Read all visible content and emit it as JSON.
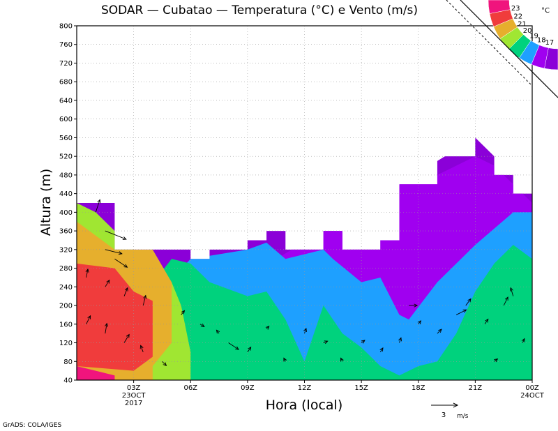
{
  "title": "SODAR  —  Cubatao  —  Temperatura (°C) e Vento (m/s)",
  "credit": "GrADS: COLA/IGES",
  "chart_data": {
    "type": "heatmap",
    "title": "SODAR  —  Cubatao  —  Temperatura (°C) e Vento (m/s)",
    "xlabel": "Hora (local)",
    "ylabel": "Altura (m)",
    "ylim": [
      40,
      800
    ],
    "xlim": [
      0,
      24
    ],
    "grid": true,
    "yticks": [
      40,
      80,
      120,
      160,
      200,
      240,
      280,
      320,
      360,
      400,
      440,
      480,
      520,
      560,
      600,
      640,
      680,
      720,
      760,
      800
    ],
    "xticks": [
      {
        "x": 3,
        "label": "03Z",
        "sub1": "23OCT",
        "sub2": "2017"
      },
      {
        "x": 6,
        "label": "06Z",
        "sub1": "",
        "sub2": ""
      },
      {
        "x": 9,
        "label": "09Z",
        "sub1": "",
        "sub2": ""
      },
      {
        "x": 12,
        "label": "12Z",
        "sub1": "",
        "sub2": ""
      },
      {
        "x": 15,
        "label": "15Z",
        "sub1": "",
        "sub2": ""
      },
      {
        "x": 18,
        "label": "18Z",
        "sub1": "",
        "sub2": ""
      },
      {
        "x": 21,
        "label": "21Z",
        "sub1": "",
        "sub2": ""
      },
      {
        "x": 24,
        "label": "00Z",
        "sub1": "24OCT",
        "sub2": ""
      }
    ],
    "colorbar": {
      "unit": "°C",
      "levels": [
        "17",
        "18",
        "19",
        "20",
        "21",
        "22",
        "23"
      ],
      "colors": [
        "#8b00d8",
        "#a000f0",
        "#1ea0ff",
        "#00d27d",
        "#a0e632",
        "#e6af2d",
        "#f03c3c",
        "#f0147d"
      ]
    },
    "top_boundary": [
      {
        "x0": 0,
        "x1": 2,
        "top": 420
      },
      {
        "x0": 2,
        "x1": 4,
        "top": 320
      },
      {
        "x0": 4,
        "x1": 6,
        "top": 320
      },
      {
        "x0": 6,
        "x1": 7,
        "top": 300
      },
      {
        "x0": 7,
        "x1": 9,
        "top": 320
      },
      {
        "x0": 9,
        "x1": 10,
        "top": 340
      },
      {
        "x0": 10,
        "x1": 11,
        "top": 360
      },
      {
        "x0": 11,
        "x1": 13,
        "top": 320
      },
      {
        "x0": 13,
        "x1": 14,
        "top": 360
      },
      {
        "x0": 14,
        "x1": 16,
        "top": 320
      },
      {
        "x0": 16,
        "x1": 17,
        "top": 340
      },
      {
        "x0": 17,
        "x1": 19,
        "top": 460
      },
      {
        "x0": 19,
        "x1": 21,
        "top": 520
      },
      {
        "x0": 21,
        "x1": 22,
        "top": 560
      },
      {
        "x0": 22,
        "x1": 23,
        "top": 480
      },
      {
        "x0": 23,
        "x1": 24,
        "top": 440
      }
    ],
    "bands": [
      {
        "level": "< 17",
        "color": "#8b00d8",
        "upper": [
          [
            0,
            420
          ],
          [
            2,
            420
          ],
          [
            10,
            360
          ],
          [
            17,
            460
          ],
          [
            21,
            560
          ],
          [
            24,
            440
          ]
        ],
        "lower": null
      },
      {
        "level": "17-18",
        "color": "#a000f0",
        "upper": [
          [
            17,
            460
          ],
          [
            19,
            480
          ],
          [
            21,
            520
          ],
          [
            22,
            500
          ],
          [
            24,
            420
          ]
        ],
        "lower": [
          [
            17,
            430
          ],
          [
            19,
            440
          ],
          [
            21,
            480
          ],
          [
            22,
            480
          ],
          [
            24,
            400
          ]
        ]
      },
      {
        "level": "18-19",
        "color": "#1ea0ff",
        "upper": [
          [
            6,
            300
          ],
          [
            9,
            320
          ],
          [
            10,
            335
          ],
          [
            11,
            300
          ],
          [
            13,
            320
          ],
          [
            13.5,
            300
          ],
          [
            15,
            250
          ],
          [
            16,
            260
          ],
          [
            17,
            180
          ],
          [
            17.5,
            170
          ],
          [
            19,
            250
          ],
          [
            21,
            330
          ],
          [
            23,
            400
          ],
          [
            24,
            400
          ]
        ],
        "lower": null
      },
      {
        "level": "19-20",
        "color": "#00d27d",
        "upper": [
          [
            5,
            300
          ],
          [
            6,
            290
          ],
          [
            7,
            250
          ],
          [
            9,
            220
          ],
          [
            10,
            230
          ],
          [
            11,
            170
          ],
          [
            12,
            80
          ],
          [
            13,
            200
          ],
          [
            14,
            140
          ],
          [
            15,
            110
          ],
          [
            16,
            70
          ],
          [
            17,
            50
          ],
          [
            18,
            70
          ],
          [
            19,
            80
          ],
          [
            20,
            140
          ],
          [
            21,
            230
          ],
          [
            22,
            290
          ],
          [
            23,
            330
          ],
          [
            24,
            300
          ]
        ],
        "lower": null
      },
      {
        "level": "20-21",
        "color": "#a0e632",
        "upper": [
          [
            0,
            420
          ],
          [
            1,
            400
          ],
          [
            3,
            320
          ],
          [
            4,
            300
          ],
          [
            5,
            250
          ],
          [
            5.5,
            200
          ],
          [
            6,
            100
          ]
        ],
        "lower": null
      },
      {
        "level": "21-22",
        "color": "#e6af2d",
        "upper": [
          [
            0,
            380
          ],
          [
            2,
            320
          ],
          [
            4,
            320
          ],
          [
            5,
            250
          ],
          [
            5,
            120
          ],
          [
            4,
            70
          ]
        ],
        "lower": null
      },
      {
        "level": "22-23",
        "color": "#f03c3c",
        "upper": [
          [
            0,
            290
          ],
          [
            2,
            280
          ],
          [
            3,
            230
          ],
          [
            4,
            210
          ],
          [
            4,
            90
          ],
          [
            3,
            60
          ],
          [
            0,
            70
          ]
        ],
        "lower": null
      },
      {
        "level": ">= 23",
        "color": "#f0147d",
        "upper": [
          [
            0,
            70
          ],
          [
            1,
            60
          ],
          [
            2,
            50
          ],
          [
            2,
            40
          ]
        ],
        "lower": null
      }
    ],
    "wind_vectors": [
      {
        "x": 1.0,
        "y": 400,
        "u": 0.5,
        "v": 1.5
      },
      {
        "x": 1.5,
        "y": 360,
        "u": 2.5,
        "v": -1.0
      },
      {
        "x": 1.5,
        "y": 320,
        "u": 2.0,
        "v": -0.5
      },
      {
        "x": 2.0,
        "y": 300,
        "u": 1.5,
        "v": -1.0
      },
      {
        "x": 0.5,
        "y": 260,
        "u": 0.2,
        "v": 1.0
      },
      {
        "x": 1.5,
        "y": 240,
        "u": 0.5,
        "v": 0.8
      },
      {
        "x": 2.5,
        "y": 220,
        "u": 0.4,
        "v": 1.0
      },
      {
        "x": 3.5,
        "y": 200,
        "u": 0.3,
        "v": 1.2
      },
      {
        "x": 0.5,
        "y": 160,
        "u": 0.5,
        "v": 1.0
      },
      {
        "x": 1.5,
        "y": 140,
        "u": 0.2,
        "v": 1.2
      },
      {
        "x": 2.5,
        "y": 120,
        "u": 0.6,
        "v": 1.0
      },
      {
        "x": 3.5,
        "y": 100,
        "u": -0.3,
        "v": 0.8
      },
      {
        "x": 4.5,
        "y": 80,
        "u": 0.5,
        "v": -0.5
      },
      {
        "x": 5.5,
        "y": 180,
        "u": 0.4,
        "v": 0.5
      },
      {
        "x": 6.5,
        "y": 160,
        "u": 0.5,
        "v": -0.3
      },
      {
        "x": 7.5,
        "y": 140,
        "u": -0.3,
        "v": 0.4
      },
      {
        "x": 8.0,
        "y": 120,
        "u": 1.2,
        "v": -0.8
      },
      {
        "x": 9.0,
        "y": 100,
        "u": 0.4,
        "v": 0.6
      },
      {
        "x": 10.0,
        "y": 150,
        "u": 0.3,
        "v": 0.3
      },
      {
        "x": 11.0,
        "y": 80,
        "u": -0.2,
        "v": 0.4
      },
      {
        "x": 12.0,
        "y": 140,
        "u": 0.2,
        "v": 0.6
      },
      {
        "x": 13.0,
        "y": 120,
        "u": 0.5,
        "v": 0.2
      },
      {
        "x": 14.0,
        "y": 80,
        "u": -0.2,
        "v": 0.4
      },
      {
        "x": 15.0,
        "y": 120,
        "u": 0.4,
        "v": 0.3
      },
      {
        "x": 16.0,
        "y": 100,
        "u": 0.3,
        "v": 0.5
      },
      {
        "x": 17.0,
        "y": 120,
        "u": 0.2,
        "v": 0.6
      },
      {
        "x": 18.0,
        "y": 160,
        "u": 0.3,
        "v": 0.4
      },
      {
        "x": 17.5,
        "y": 200,
        "u": 1.0,
        "v": 0.0
      },
      {
        "x": 19.0,
        "y": 140,
        "u": 0.5,
        "v": 0.5
      },
      {
        "x": 20.0,
        "y": 180,
        "u": 1.2,
        "v": 0.6
      },
      {
        "x": 20.5,
        "y": 200,
        "u": 0.6,
        "v": 0.8
      },
      {
        "x": 21.5,
        "y": 160,
        "u": 0.4,
        "v": 0.6
      },
      {
        "x": 22.5,
        "y": 200,
        "u": 0.5,
        "v": 1.0
      },
      {
        "x": 23.0,
        "y": 220,
        "u": -0.3,
        "v": 1.0
      },
      {
        "x": 23.5,
        "y": 120,
        "u": 0.2,
        "v": 0.5
      },
      {
        "x": 22.0,
        "y": 80,
        "u": 0.4,
        "v": 0.3
      }
    ],
    "reference_vector": {
      "value": "3",
      "unit": "m/s"
    }
  }
}
